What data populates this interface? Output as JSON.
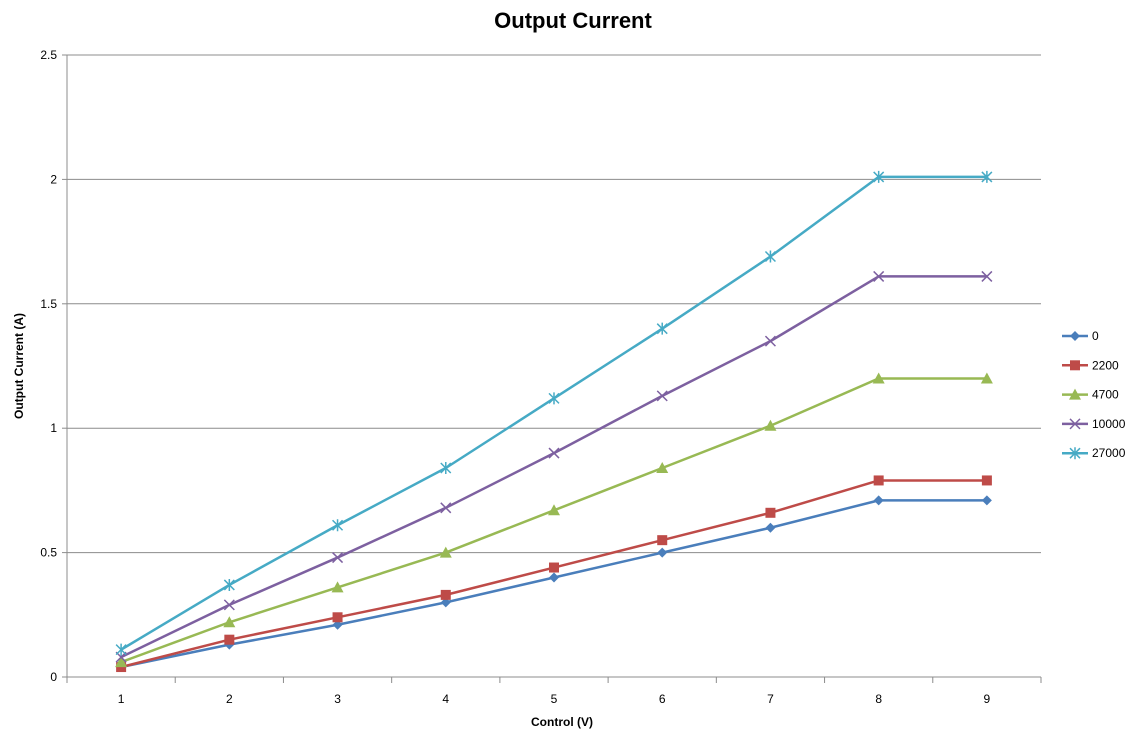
{
  "chart_data": {
    "type": "line",
    "title": "Output Current",
    "xlabel": "Control (V)",
    "ylabel": "Output Current (A)",
    "x": [
      1,
      2,
      3,
      4,
      5,
      6,
      7,
      8,
      9
    ],
    "xlim": [
      1,
      9
    ],
    "ylim": [
      0,
      2.5
    ],
    "y_ticks": [
      0,
      0.5,
      1,
      1.5,
      2,
      2.5
    ],
    "grid": "horizontal",
    "legend_position": "right",
    "series": [
      {
        "name": "0",
        "color": "#4a7ebb",
        "marker": "diamond",
        "values": [
          0.04,
          0.13,
          0.21,
          0.3,
          0.4,
          0.5,
          0.6,
          0.71,
          0.71
        ]
      },
      {
        "name": "2200",
        "color": "#be4b48",
        "marker": "square",
        "values": [
          0.04,
          0.15,
          0.24,
          0.33,
          0.44,
          0.55,
          0.66,
          0.79,
          0.79
        ]
      },
      {
        "name": "4700",
        "color": "#98b954",
        "marker": "triangle",
        "values": [
          0.06,
          0.22,
          0.36,
          0.5,
          0.67,
          0.84,
          1.01,
          1.2,
          1.2
        ]
      },
      {
        "name": "10000",
        "color": "#7d60a0",
        "marker": "x",
        "values": [
          0.08,
          0.29,
          0.48,
          0.68,
          0.9,
          1.13,
          1.35,
          1.61,
          1.61
        ]
      },
      {
        "name": "27000",
        "color": "#46aac5",
        "marker": "star",
        "values": [
          0.11,
          0.37,
          0.61,
          0.84,
          1.12,
          1.4,
          1.69,
          2.01,
          2.01
        ]
      }
    ]
  }
}
